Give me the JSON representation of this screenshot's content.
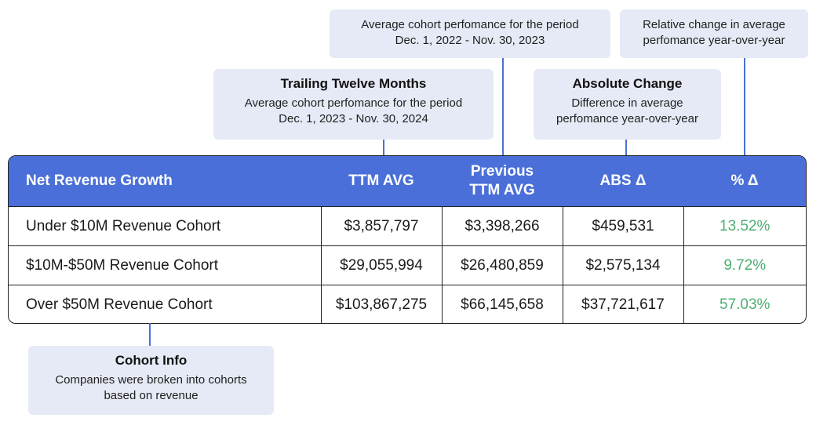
{
  "callouts": {
    "prev_ttm": {
      "line1": "Average cohort perfomance for the period",
      "line2": "Dec. 1, 2022 - Nov. 30, 2023"
    },
    "relative": {
      "line1": "Relative change in average",
      "line2": "perfomance year-over-year"
    },
    "ttm": {
      "title": "Trailing Twelve Months",
      "line1": "Average cohort perfomance for the period",
      "line2": "Dec. 1, 2023 - Nov. 30, 2024"
    },
    "absolute": {
      "title": "Absolute Change",
      "line1": "Difference in average",
      "line2": "perfomance year-over-year"
    },
    "cohort": {
      "title": "Cohort Info",
      "line1": "Companies were broken into cohorts",
      "line2": "based on revenue"
    }
  },
  "table": {
    "headers": {
      "metric": "Net Revenue Growth",
      "ttm": "TTM AVG",
      "prev_line1": "Previous",
      "prev_line2": "TTM AVG",
      "abs": "ABS Δ",
      "pct": "% Δ"
    },
    "rows": [
      {
        "cohort": "Under $10M Revenue Cohort",
        "ttm": "$3,857,797",
        "prev": "$3,398,266",
        "abs": "$459,531",
        "pct": "13.52%"
      },
      {
        "cohort": "$10M-$50M Revenue Cohort",
        "ttm": "$29,055,994",
        "prev": "$26,480,859",
        "abs": "$2,575,134",
        "pct": "9.72%"
      },
      {
        "cohort": "Over $50M Revenue Cohort",
        "ttm": "$103,867,275",
        "prev": "$66,145,658",
        "abs": "$37,721,617",
        "pct": "57.03%"
      }
    ]
  },
  "colors": {
    "header_bg": "#4a6fd8",
    "callout_bg": "#e6eaf6",
    "positive": "#4cae72",
    "connector": "#4a6fd8"
  }
}
